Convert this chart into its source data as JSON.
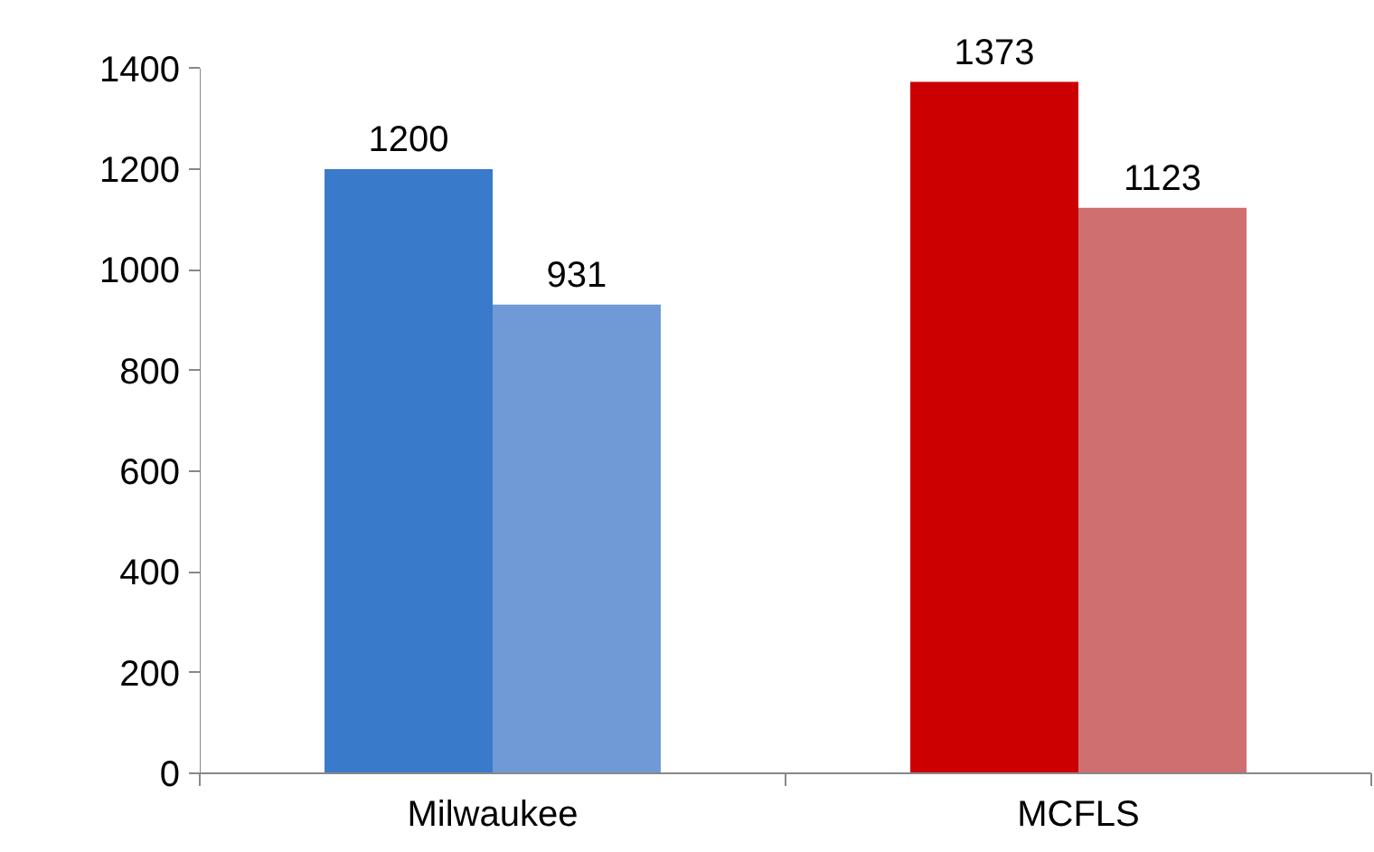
{
  "chart_data": {
    "type": "bar",
    "categories": [
      "Milwaukee",
      "MCFLS"
    ],
    "series": [
      {
        "colors": [
          "#3a7acb",
          "#cc0000"
        ],
        "values": [
          1200,
          1373
        ]
      },
      {
        "colors": [
          "#6f9ad6",
          "#cf6f6f"
        ],
        "values": [
          931,
          1123
        ]
      }
    ],
    "ylim": [
      0,
      1400
    ],
    "yticks": [
      0,
      200,
      400,
      600,
      800,
      1000,
      1200,
      1400
    ],
    "grid": false,
    "data_labels": true
  }
}
